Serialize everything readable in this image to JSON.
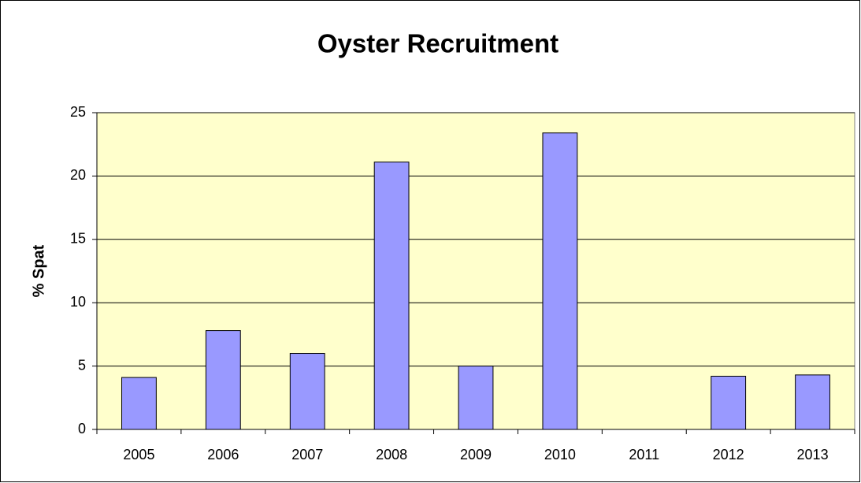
{
  "chart_data": {
    "type": "bar",
    "title": "Oyster Recruitment",
    "y_label": "% Spat",
    "categories": [
      "2005",
      "2006",
      "2007",
      "2008",
      "2009",
      "2010",
      "2011",
      "2012",
      "2013"
    ],
    "values": [
      4.1,
      7.8,
      6.0,
      21.1,
      5.0,
      23.4,
      0,
      4.2,
      4.3
    ],
    "color": "#9999ff",
    "plot_background": "#ffffcc",
    "ylim": [
      0,
      25
    ],
    "yticks": [
      0,
      5,
      10,
      15,
      20,
      25
    ],
    "grid": true
  }
}
